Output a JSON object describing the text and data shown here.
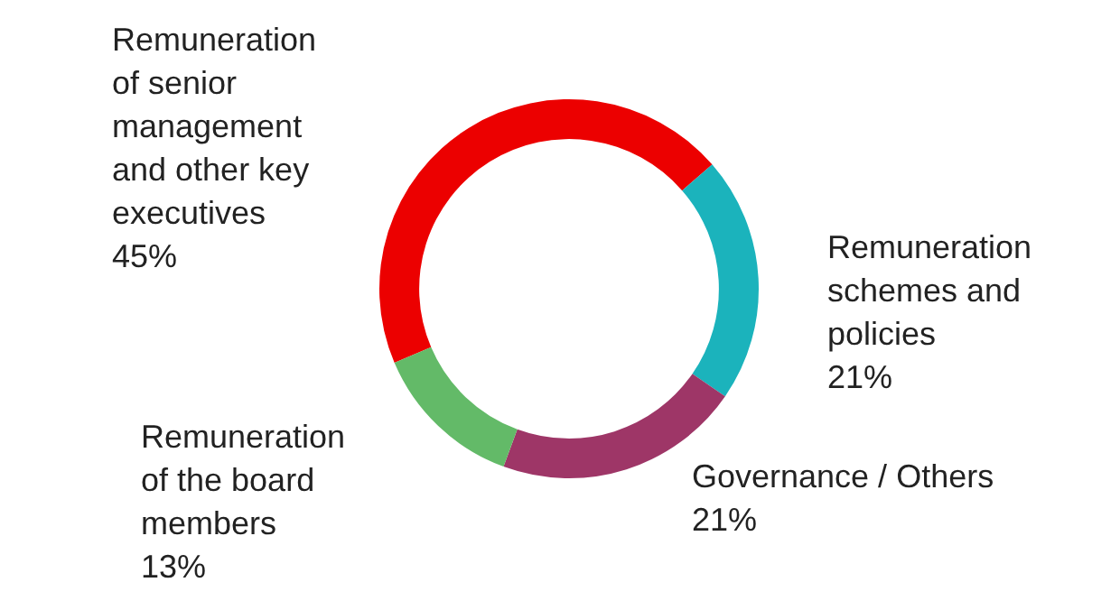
{
  "chart_data": {
    "type": "donut",
    "categories": [
      "Remuneration of senior management and other key executives",
      "Remuneration schemes and policies",
      "Governance / Others",
      "Remuneration of the board members"
    ],
    "values": [
      45,
      21,
      21,
      13
    ],
    "colors": [
      "#ec0000",
      "#1bb3bc",
      "#9e3667",
      "#63ba68"
    ],
    "value_labels": [
      "45%",
      "21%",
      "21%",
      "13%"
    ],
    "legend": false
  }
}
